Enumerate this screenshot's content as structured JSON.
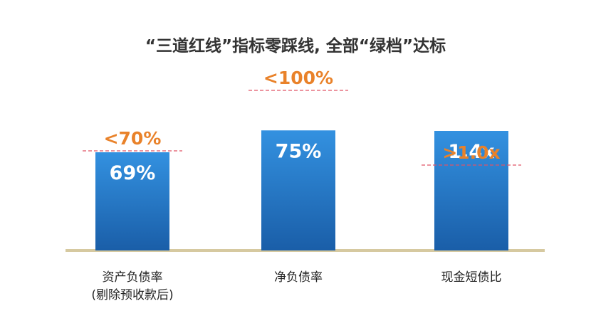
{
  "chart_data": {
    "type": "bar",
    "title": "“三道红线”指标零踩线, 全部“绿档”达标",
    "categories": [
      "资产负债率\n(剔除预收款后)",
      "净负债率",
      "现金短债比"
    ],
    "values": [
      69,
      75,
      1.4
    ],
    "value_labels": [
      "69%",
      "75%",
      "1.4x"
    ],
    "thresholds": [
      70,
      100,
      1.0
    ],
    "threshold_labels": [
      "<70%",
      "<100%",
      ">1.0x"
    ],
    "color": "#1f72c0",
    "threshold_color": "#e9822a",
    "threshold_line_color": "#e05366"
  }
}
